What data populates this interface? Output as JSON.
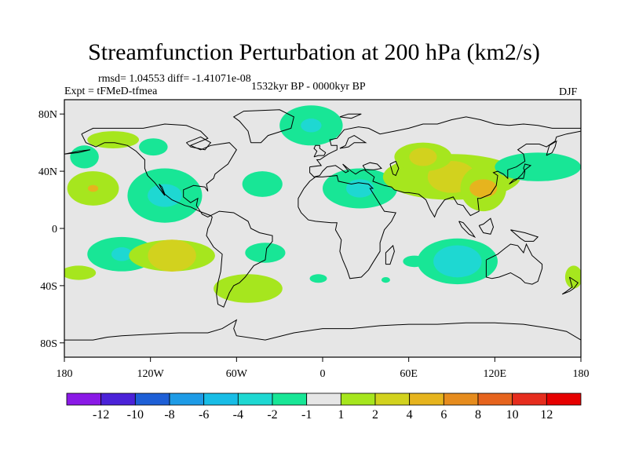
{
  "title": "Streamfunction Perturbation at 200 hPa (km2/s)",
  "stats": "rmsd= 1.04553 diff= -1.41071e-08",
  "experiment": "Expt = tFMeD-tfmea",
  "period": "1532kyr BP - 0000kyr BP",
  "season": "DJF",
  "chart_data": {
    "type": "contour-map",
    "variable": "streamfunction perturbation",
    "level_hPa": 200,
    "units": "km2/s",
    "projection": "cylindrical equidistant",
    "lon_range": [
      -180,
      180
    ],
    "lat_range": [
      -90,
      90
    ],
    "xticks": [
      {
        "value": -180,
        "label": "180"
      },
      {
        "value": -120,
        "label": "120W"
      },
      {
        "value": -60,
        "label": "60W"
      },
      {
        "value": 0,
        "label": "0"
      },
      {
        "value": 60,
        "label": "60E"
      },
      {
        "value": 120,
        "label": "120E"
      },
      {
        "value": 180,
        "label": "180"
      }
    ],
    "yticks": [
      {
        "value": 80,
        "label": "80N"
      },
      {
        "value": 40,
        "label": "40N"
      },
      {
        "value": 0,
        "label": "0"
      },
      {
        "value": -40,
        "label": "40S"
      },
      {
        "value": -80,
        "label": "80S"
      }
    ],
    "colorbar": {
      "labels": [
        "-12",
        "-10",
        "-8",
        "-6",
        "-4",
        "-2",
        "-1",
        "1",
        "2",
        "4",
        "6",
        "8",
        "10",
        "12"
      ],
      "colors": [
        "#8a19e6",
        "#4b22d8",
        "#1e5fd6",
        "#1e9be6",
        "#18bde6",
        "#1ed8d2",
        "#18e696",
        "#e6e6e6",
        "#a6e61e",
        "#d2d21e",
        "#e6b41e",
        "#e68c1e",
        "#e6641e",
        "#e62d1e",
        "#e60000"
      ]
    },
    "features": [
      {
        "name": "n-pacific-low",
        "lon": -160,
        "lat": 28,
        "rx": 18,
        "ry": 12,
        "value": 1,
        "core": 3,
        "core_value": 4
      },
      {
        "name": "n-pacific-high-lat",
        "lon": -146,
        "lat": 62,
        "rx": 18,
        "ry": 6,
        "value": 1
      },
      {
        "name": "e-pacific-north",
        "lon": -166,
        "lat": 50,
        "rx": 10,
        "ry": 8,
        "value": -1
      },
      {
        "name": "americas-trough",
        "lon": -110,
        "lat": 23,
        "rx": 26,
        "ry": 19,
        "value": -1,
        "core": 10,
        "core_value": -2
      },
      {
        "name": "nw-canada",
        "lon": -118,
        "lat": 57,
        "rx": 10,
        "ry": 6,
        "value": -1
      },
      {
        "name": "n-atlantic",
        "lon": -8,
        "lat": 72,
        "rx": 22,
        "ry": 14,
        "value": -1,
        "core": 6,
        "core_value": -2
      },
      {
        "name": "mid-atlantic",
        "lon": -42,
        "lat": 31,
        "rx": 14,
        "ry": 9,
        "value": -1
      },
      {
        "name": "n-africa-low",
        "lon": 26,
        "lat": 28,
        "rx": 26,
        "ry": 14,
        "value": -1,
        "core": 8,
        "core_value": -2
      },
      {
        "name": "asia-ridge",
        "lon": 90,
        "lat": 36,
        "rx": 48,
        "ry": 16,
        "value": 1,
        "core": 14,
        "core_value": 2
      },
      {
        "name": "tibet-core",
        "lon": 70,
        "lat": 50,
        "rx": 20,
        "ry": 10,
        "value": 1,
        "core": 8,
        "core_value": 2
      },
      {
        "name": "china-core",
        "lon": 112,
        "lat": 28,
        "rx": 16,
        "ry": 16,
        "value": 1,
        "core": 8,
        "core_value": 4
      },
      {
        "name": "nw-pacific",
        "lon": 150,
        "lat": 43,
        "rx": 30,
        "ry": 10,
        "value": -1
      },
      {
        "name": "s-pacific-west",
        "lon": -140,
        "lat": -18,
        "rx": 24,
        "ry": 12,
        "value": -1,
        "core": 6,
        "core_value": -2
      },
      {
        "name": "s-pacific-band",
        "lon": -105,
        "lat": -19,
        "rx": 30,
        "ry": 11,
        "value": 1,
        "core": 14,
        "core_value": 2
      },
      {
        "name": "s-america-east",
        "lon": -40,
        "lat": -17,
        "rx": 14,
        "ry": 7,
        "value": -1
      },
      {
        "name": "s-atlantic",
        "lon": -52,
        "lat": -42,
        "rx": 24,
        "ry": 10,
        "value": 1
      },
      {
        "name": "sw-pacific-tail",
        "lon": -170,
        "lat": -31,
        "rx": 12,
        "ry": 5,
        "value": 1
      },
      {
        "name": "indian-ocean",
        "lon": 94,
        "lat": -23,
        "rx": 28,
        "ry": 16,
        "value": -1,
        "core": 14,
        "core_value": -2
      },
      {
        "name": "indian-ocean-west",
        "lon": 64,
        "lat": -23,
        "rx": 8,
        "ry": 4,
        "value": -1
      },
      {
        "name": "s-atlantic-east",
        "lon": -3,
        "lat": -35,
        "rx": 6,
        "ry": 3,
        "value": -1
      },
      {
        "name": "s-africa-south",
        "lon": 44,
        "lat": -36,
        "rx": 3,
        "ry": 2,
        "value": -1
      },
      {
        "name": "sw-indian-east",
        "lon": 175,
        "lat": -34,
        "rx": 6,
        "ry": 8,
        "value": 1
      }
    ]
  }
}
